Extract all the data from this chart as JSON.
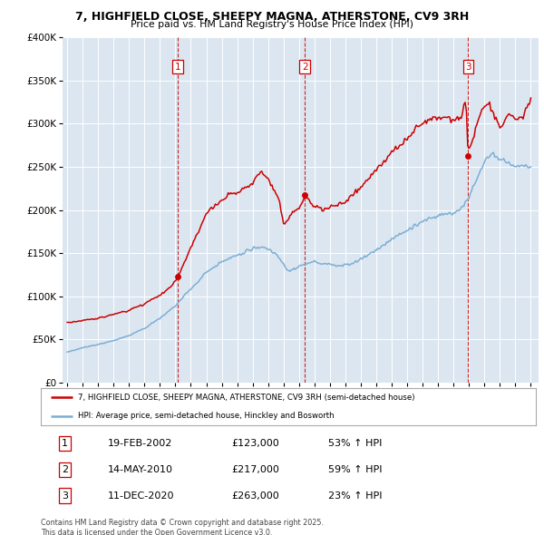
{
  "title_line1": "7, HIGHFIELD CLOSE, SHEEPY MAGNA, ATHERSTONE, CV9 3RH",
  "title_line2": "Price paid vs. HM Land Registry's House Price Index (HPI)",
  "red_label": "7, HIGHFIELD CLOSE, SHEEPY MAGNA, ATHERSTONE, CV9 3RH (semi-detached house)",
  "blue_label": "HPI: Average price, semi-detached house, Hinckley and Bosworth",
  "sale1_date": "19-FEB-2002",
  "sale1_price": 123000,
  "sale1_hpi": "53% ↑ HPI",
  "sale2_date": "14-MAY-2010",
  "sale2_price": 217000,
  "sale2_hpi": "59% ↑ HPI",
  "sale3_date": "11-DEC-2020",
  "sale3_price": 263000,
  "sale3_hpi": "23% ↑ HPI",
  "footer": "Contains HM Land Registry data © Crown copyright and database right 2025.\nThis data is licensed under the Open Government Licence v3.0.",
  "ylim": [
    0,
    400000
  ],
  "xlim_min": 1994.7,
  "xlim_max": 2025.5,
  "background_color": "#dce6f0",
  "red_color": "#cc0000",
  "blue_color": "#7bafd4",
  "dashed_color": "#cc0000",
  "grid_color": "white",
  "sale_dates_dec": [
    2002.13,
    2010.37,
    2020.95
  ],
  "sale_prices": [
    123000,
    217000,
    263000
  ],
  "sale_labels": [
    "1",
    "2",
    "3"
  ]
}
